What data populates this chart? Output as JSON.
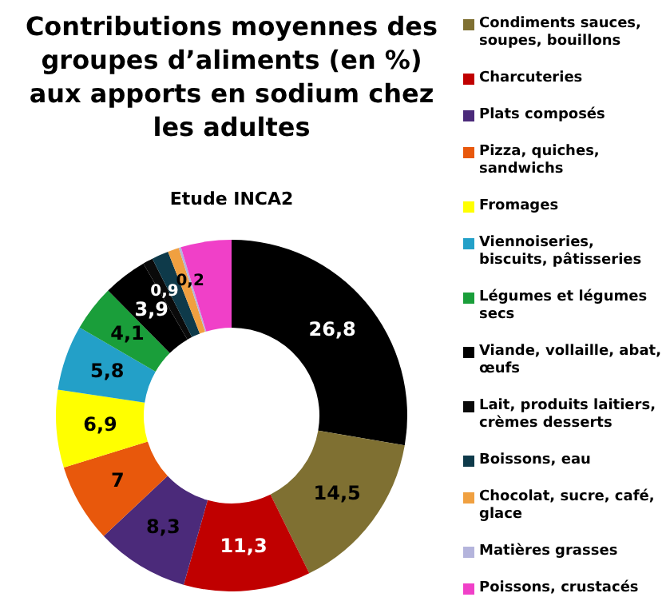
{
  "chart_data": {
    "type": "donut",
    "title": "Contributions moyennes des groupes d’aliments (en %) aux apports en sodium chez les adultes",
    "annotations": [
      "Etude INCA2"
    ],
    "categories": [
      null,
      "Condiments sauces, soupes, bouillons",
      "Charcuteries",
      "Plats composés",
      "Pizza, quiches, sandwichs",
      "Fromages",
      "Viennoiseries, biscuits, pâtisseries",
      "Légumes et légumes secs",
      "Viande, vollaille, abat, œufs",
      "Lait, produits laitiers, crèmes desserts",
      "Boissons, eau",
      "Chocolat, sucre, café, glace",
      "Matières grasses",
      "Poissons, crustacés"
    ],
    "values": [
      26.8,
      14.5,
      11.3,
      8.3,
      7,
      6.9,
      5.8,
      4.1,
      3.9,
      0.9,
      1.5,
      1,
      0.2,
      4.5
    ],
    "value_labels": [
      "26,8",
      "14,5",
      "11,3",
      "8,3",
      "7",
      "6,9",
      "5,8",
      "4,1",
      "3,9",
      "0,9",
      null,
      null,
      "0,2",
      null
    ],
    "colors": [
      "#000000",
      "#7f7032",
      "#c00000",
      "#4b2a7a",
      "#e8580c",
      "#ffff00",
      "#23a0c8",
      "#1a9e3a",
      "#000000",
      "#0a0a0a",
      "#0e3a4a",
      "#f0a040",
      "#b4b4dc",
      "#f040c8"
    ],
    "legend": "right"
  }
}
